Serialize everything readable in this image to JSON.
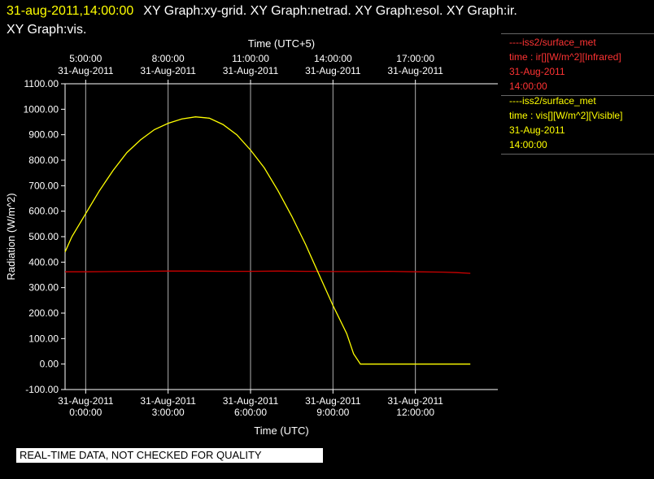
{
  "header": {
    "timestamp": "31-aug-2011,14:00:00",
    "graphs_line1": "XY Graph:xy-grid.  XY Graph:netrad.  XY Graph:esol.  XY Graph:ir.",
    "graphs_line2": "XY Graph:vis."
  },
  "legend": {
    "ir": {
      "source": "----iss2/surface_met",
      "field": "time : ir[][W/m^2][Infrared]",
      "date": "31-Aug-2011",
      "time": "14:00:00"
    },
    "vis": {
      "source": "----iss2/surface_met",
      "field": "time : vis[][W/m^2][Visible]",
      "date": "31-Aug-2011",
      "time": "14:00:00"
    }
  },
  "footer": {
    "quality_notice": "REAL-TIME DATA, NOT CHECKED FOR QUALITY"
  },
  "colors": {
    "ir": "#cc0000",
    "vis": "#ffff00",
    "grid": "#b0b0b0",
    "axis": "#ffffff"
  },
  "chart_data": {
    "type": "line",
    "xlabel": "Time (UTC)",
    "x2label": "Time (UTC+5)",
    "ylabel": "Radiation (W/m^2)",
    "xlim": [
      -0.75,
      15.0
    ],
    "ylim": [
      -100,
      1100
    ],
    "y_ticks": [
      "-100.00",
      "0.00",
      "100.00",
      "200.00",
      "300.00",
      "400.00",
      "500.00",
      "600.00",
      "700.00",
      "800.00",
      "900.00",
      "1000.00",
      "1100.00"
    ],
    "y_tick_values": [
      -100,
      0,
      100,
      200,
      300,
      400,
      500,
      600,
      700,
      800,
      900,
      1000,
      1100
    ],
    "x_ticks_bottom": [
      {
        "value": 0,
        "date": "31-Aug-2011",
        "time": "0:00:00"
      },
      {
        "value": 3,
        "date": "31-Aug-2011",
        "time": "3:00:00"
      },
      {
        "value": 6,
        "date": "31-Aug-2011",
        "time": "6:00:00"
      },
      {
        "value": 9,
        "date": "31-Aug-2011",
        "time": "9:00:00"
      },
      {
        "value": 12,
        "date": "31-Aug-2011",
        "time": "12:00:00"
      }
    ],
    "x_ticks_top": [
      {
        "value": 0,
        "time": "5:00:00",
        "date": "31-Aug-2011"
      },
      {
        "value": 3,
        "time": "8:00:00",
        "date": "31-Aug-2011"
      },
      {
        "value": 6,
        "time": "11:00:00",
        "date": "31-Aug-2011"
      },
      {
        "value": 9,
        "time": "14:00:00",
        "date": "31-Aug-2011"
      },
      {
        "value": 12,
        "time": "17:00:00",
        "date": "31-Aug-2011"
      }
    ],
    "grid": true,
    "series": [
      {
        "name": "ir",
        "color": "#cc0000",
        "x": [
          -0.75,
          0,
          1,
          2,
          3,
          4,
          5,
          6,
          7,
          8,
          9,
          10,
          11,
          12,
          13,
          13.5,
          14.0
        ],
        "values": [
          362,
          362,
          363,
          364,
          365,
          365,
          364,
          364,
          365,
          364,
          363,
          363,
          364,
          362,
          361,
          359,
          356
        ]
      },
      {
        "name": "vis",
        "color": "#ffff00",
        "x": [
          -0.75,
          -0.5,
          0,
          0.5,
          1,
          1.5,
          2,
          2.5,
          3,
          3.5,
          4,
          4.5,
          5,
          5.5,
          6,
          6.5,
          7,
          7.5,
          8,
          8.5,
          9,
          9.5,
          9.75,
          10,
          11,
          12,
          13,
          14.0
        ],
        "values": [
          440,
          500,
          590,
          680,
          760,
          830,
          880,
          920,
          945,
          962,
          970,
          965,
          940,
          900,
          840,
          770,
          680,
          580,
          470,
          350,
          230,
          120,
          40,
          0,
          0,
          0,
          0,
          0
        ]
      }
    ]
  }
}
